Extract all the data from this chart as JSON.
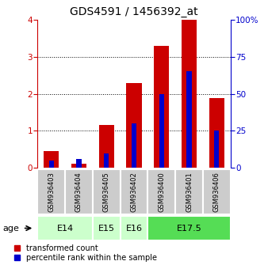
{
  "title": "GDS4591 / 1456392_at",
  "samples": [
    "GSM936403",
    "GSM936404",
    "GSM936405",
    "GSM936402",
    "GSM936400",
    "GSM936401",
    "GSM936406"
  ],
  "red_values": [
    0.45,
    0.12,
    1.15,
    2.28,
    3.3,
    4.0,
    1.88
  ],
  "blue_values": [
    5,
    6,
    10,
    30,
    50,
    65,
    25
  ],
  "red_color": "#cc0000",
  "blue_color": "#0000cc",
  "ylim_left": [
    0,
    4
  ],
  "ylim_right": [
    0,
    100
  ],
  "yticks_left": [
    0,
    1,
    2,
    3,
    4
  ],
  "yticks_right": [
    0,
    25,
    50,
    75,
    100
  ],
  "ytick_labels_right": [
    "0",
    "25",
    "50",
    "75",
    "100%"
  ],
  "age_groups": [
    {
      "label": "E14",
      "span": [
        0,
        1
      ],
      "color": "#ccffcc"
    },
    {
      "label": "E15",
      "span": [
        2,
        2
      ],
      "color": "#ccffcc"
    },
    {
      "label": "E16",
      "span": [
        3,
        3
      ],
      "color": "#ccffcc"
    },
    {
      "label": "E17.5",
      "span": [
        4,
        6
      ],
      "color": "#55dd55"
    }
  ],
  "bar_bg_color": "#cccccc",
  "legend_red_label": "transformed count",
  "legend_blue_label": "percentile rank within the sample",
  "age_label": "age",
  "red_bar_width": 0.55,
  "blue_bar_width": 0.18,
  "title_fontsize": 10,
  "tick_fontsize": 7.5,
  "sample_fontsize": 6,
  "age_fontsize": 8
}
